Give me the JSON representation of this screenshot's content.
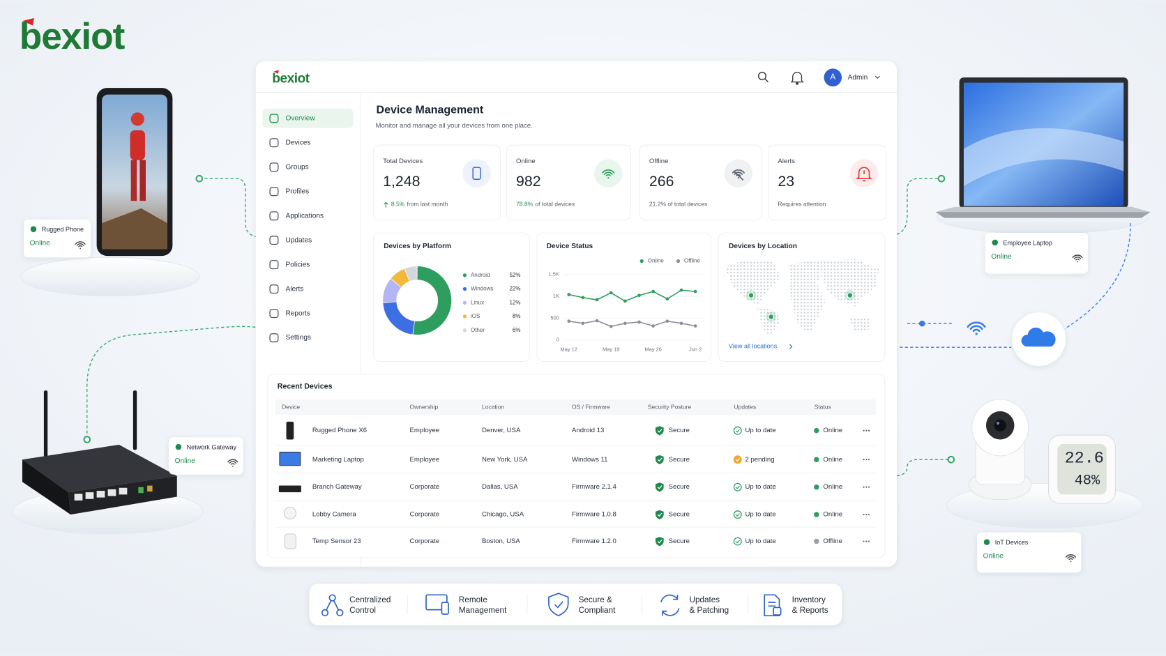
{
  "logo": "bexiot",
  "header": {
    "logo": "bexiot",
    "avatar": "A",
    "user": "Admin"
  },
  "sidebar": [
    "Overview",
    "Devices",
    "Groups",
    "Profiles",
    "Applications",
    "Updates",
    "Policies",
    "Alerts",
    "Reports",
    "Settings"
  ],
  "page": {
    "title": "Device Management",
    "subtitle": "Monitor and manage all your devices from one place."
  },
  "stats": [
    {
      "label": "Total Devices",
      "value": "1,248",
      "highlight": "8.5%",
      "note": "from last month"
    },
    {
      "label": "Online",
      "value": "982",
      "highlight": "78.8%",
      "note": "of total devices"
    },
    {
      "label": "Offline",
      "value": "266",
      "note": "21.2% of total devices"
    },
    {
      "label": "Alerts",
      "value": "23",
      "note": "Requires attention"
    }
  ],
  "platform_chart": {
    "type": "pie",
    "title": "Devices by Platform",
    "categories": [
      "Android",
      "Windows",
      "Linux",
      "iOS",
      "Other"
    ],
    "values": [
      52,
      22,
      12,
      8,
      6
    ],
    "value_labels": [
      "52%",
      "22%",
      "12%",
      "8%",
      "6%"
    ],
    "colors": [
      "#2e9e5e",
      "#3d6fe3",
      "#b3b6f2",
      "#f3b93d",
      "#d3d7de"
    ]
  },
  "status_chart": {
    "type": "line",
    "title": "Device Status",
    "categories": [
      "May 12",
      null,
      null,
      "May 19",
      null,
      null,
      "May 26",
      null,
      null,
      "Jun 2"
    ],
    "series": [
      {
        "name": "Online",
        "color": "#2e9e5e",
        "values": [
          1040,
          970,
          920,
          1080,
          890,
          1020,
          1110,
          940,
          1140,
          1110
        ]
      },
      {
        "name": "Offline",
        "color": "#8a8f98",
        "values": [
          430,
          380,
          440,
          310,
          380,
          410,
          320,
          430,
          380,
          320
        ]
      }
    ],
    "ylim": [
      0,
      1500
    ],
    "yticks": [
      0,
      500,
      {
        "value": 1000,
        "label": "1K"
      },
      {
        "value": 1500,
        "label": "1.5K"
      }
    ],
    "grid": true
  },
  "location_card": {
    "title": "Devices by Location",
    "link": "View all locations"
  },
  "table": {
    "title": "Recent Devices",
    "columns": [
      "Device",
      "Ownership",
      "Location",
      "OS / Firmware",
      "Security Posture",
      "Updates",
      "Status"
    ],
    "rows": [
      [
        "Rugged Phone X6",
        "Employee",
        "Denver, USA",
        "Android 13",
        "Secure",
        "Up to date",
        "Online"
      ],
      [
        "Marketing Laptop",
        "Employee",
        "New York, USA",
        "Windows 11",
        "Secure",
        "2 pending",
        "Online"
      ],
      [
        "Branch Gateway",
        "Corporate",
        "Dallas, USA",
        "Firmware 2.1.4",
        "Secure",
        "Up to date",
        "Online"
      ],
      [
        "Lobby Camera",
        "Corporate",
        "Chicago, USA",
        "Firmware 1.0.8",
        "Secure",
        "Up to date",
        "Online"
      ],
      [
        "Temp Sensor 23",
        "Corporate",
        "Boston, USA",
        "Firmware 1.2.0",
        "Secure",
        "Up to date",
        "Offline"
      ]
    ],
    "update_colors": [
      "#2e9e5e",
      "#f0a830",
      "#2e9e5e",
      "#2e9e5e",
      "#2e9e5e"
    ],
    "status_colors": [
      "#2e9e5e",
      "#2e9e5e",
      "#2e9e5e",
      "#2e9e5e",
      "#9aa0a6"
    ]
  },
  "features": [
    [
      "Centralized",
      "Control"
    ],
    [
      "Remote",
      "Management"
    ],
    [
      "Secure &",
      "Compliant"
    ],
    [
      "Updates",
      "& Patching"
    ],
    [
      "Inventory",
      "& Reports"
    ]
  ],
  "devices": [
    {
      "name": "Rugged Phone",
      "status": "Online"
    },
    {
      "name": "Network Gateway",
      "status": "Online"
    },
    {
      "name": "Employee Laptop",
      "status": "Online"
    },
    {
      "name": "IoT Devices",
      "status": "Online"
    }
  ],
  "sensor_display": [
    "22.6",
    "48%"
  ]
}
